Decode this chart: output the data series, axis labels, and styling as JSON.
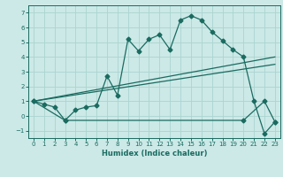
{
  "title": "",
  "xlabel": "Humidex (Indice chaleur)",
  "bg_color": "#cce9e7",
  "grid_color": "#aad4d0",
  "line_color": "#1a6b60",
  "xlim": [
    -0.5,
    23.5
  ],
  "ylim": [
    -1.5,
    7.5
  ],
  "yticks": [
    -1,
    0,
    1,
    2,
    3,
    4,
    5,
    6,
    7
  ],
  "xticks": [
    0,
    1,
    2,
    3,
    4,
    5,
    6,
    7,
    8,
    9,
    10,
    11,
    12,
    13,
    14,
    15,
    16,
    17,
    18,
    19,
    20,
    21,
    22,
    23
  ],
  "line1_x": [
    0,
    1,
    2,
    3,
    4,
    5,
    6,
    7,
    8,
    9,
    10,
    11,
    12,
    13,
    14,
    15,
    16,
    17,
    18,
    19,
    20,
    21,
    22,
    23
  ],
  "line1_y": [
    1.0,
    0.8,
    0.6,
    -0.3,
    0.4,
    0.6,
    0.7,
    2.7,
    1.4,
    5.2,
    4.4,
    5.2,
    5.5,
    4.5,
    6.5,
    6.8,
    6.5,
    5.7,
    5.1,
    4.5,
    4.0,
    1.0,
    -1.2,
    -0.4
  ],
  "line2_x": [
    0,
    23
  ],
  "line2_y": [
    1.0,
    4.0
  ],
  "line3_x": [
    0,
    23
  ],
  "line3_y": [
    1.0,
    3.5
  ],
  "line4_x": [
    0,
    3,
    20,
    22,
    23
  ],
  "line4_y": [
    1.0,
    -0.3,
    -0.3,
    1.0,
    -0.4
  ],
  "marker": "D",
  "markersize": 2.5
}
